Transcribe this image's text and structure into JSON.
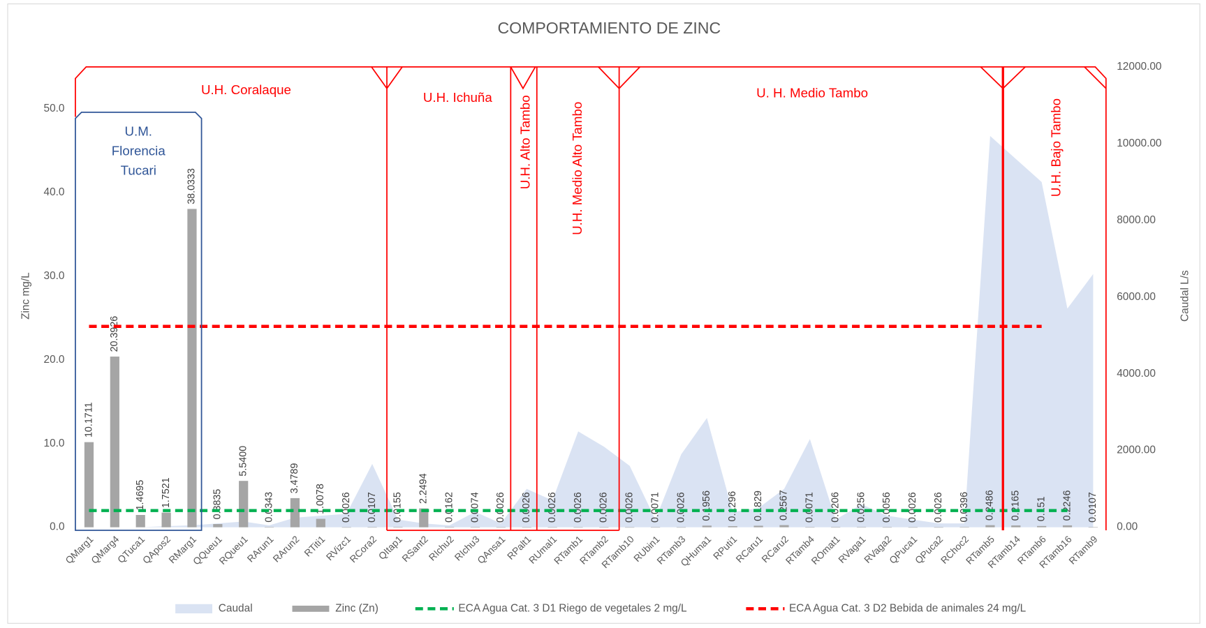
{
  "chart_data": {
    "type": "combo",
    "title": "COMPORTAMIENTO DE ZINC",
    "ylabel": "Zinc mg/L",
    "y2label": "Caudal L/s",
    "categories": [
      "QMarg1",
      "QMarg4",
      "QTuca1",
      "QApos2",
      "RMarg1",
      "QQueu1",
      "RQueu1",
      "RArun1",
      "RArun2",
      "RTiti1",
      "RVizc1",
      "RCora2",
      "QItap1",
      "RSant2",
      "RIchu2",
      "RIchu3",
      "QAnsa1",
      "RPalt1",
      "RUmal1",
      "RTamb1",
      "RTamb2",
      "RTamb10",
      "RUbin1",
      "RTamb3",
      "QHuma1",
      "RPuti1",
      "RCaru1",
      "RCaru2",
      "RTamb4",
      "ROmat1",
      "RVaga1",
      "RVaga2",
      "QPuca1",
      "QPuca2",
      "RChoc2",
      "RTamb5",
      "RTamb14",
      "RTamb6",
      "RTamb16",
      "RTamb9"
    ],
    "series": [
      {
        "name": "Caudal",
        "type": "area",
        "axis": "y2",
        "color": "#dae3f3",
        "values": [
          0,
          0,
          0,
          30,
          50,
          100,
          150,
          50,
          250,
          300,
          350,
          1650,
          200,
          100,
          50,
          400,
          100,
          1000,
          700,
          2500,
          2100,
          1600,
          200,
          1900,
          2850,
          400,
          500,
          1000,
          2300,
          200,
          600,
          300,
          200,
          100,
          100,
          10200,
          9600,
          9000,
          5700,
          6600
        ]
      },
      {
        "name": "Zinc (Zn)",
        "type": "bar",
        "color": "#a5a5a5",
        "values": [
          10.1711,
          20.3926,
          1.4695,
          1.7521,
          38.0333,
          0.3835,
          5.54,
          0.0343,
          3.4789,
          1.0078,
          0.0026,
          0.0107,
          0.0155,
          2.2494,
          0.0162,
          0.0074,
          0.0026,
          0.0026,
          0.0026,
          0.0026,
          0.0026,
          0.0026,
          0.0071,
          0.0026,
          0.1956,
          0.1296,
          0.1829,
          0.2567,
          0.0071,
          0.0206,
          0.0256,
          0.0056,
          0.0026,
          0.0026,
          0.0396,
          0.2486,
          0.2165,
          0.151,
          0.2246,
          0.0107
        ],
        "value_labels": [
          "10.1711",
          "20.3926",
          "1.4695",
          "1.7521",
          "38.0333",
          "0.3835",
          "5.5400",
          "0.0343",
          "3.4789",
          "1.0078",
          "0.0026",
          "0.0107",
          "0.0155",
          "2.2494",
          "0.0162",
          "0.0074",
          "0.0026",
          "0.0026",
          "0.0026",
          "0.0026",
          "0.0026",
          "0.0026",
          "0.0071",
          "0.0026",
          "0.1956",
          "0.1296",
          "0.1829",
          "0.2567",
          "0.0071",
          "0.0206",
          "0.0256",
          "0.0056",
          "0.0026",
          "0.0026",
          "0.0396",
          "0.2486",
          "0.2165",
          "0.151",
          "0.2246",
          "0.0107"
        ]
      },
      {
        "name": "ECA Agua Cat. 3 D1 Riego de vegetales 2 mg/L",
        "type": "line",
        "dashed": true,
        "color": "#00b050",
        "values": [
          2,
          2,
          2,
          2,
          2,
          2,
          2,
          2,
          2,
          2,
          2,
          2,
          2,
          2,
          2,
          2,
          2,
          2,
          2,
          2,
          2,
          2,
          2,
          2,
          2,
          2,
          2,
          2,
          2,
          2,
          2,
          2,
          2,
          2,
          2,
          2,
          2,
          2,
          2,
          null
        ]
      },
      {
        "name": "ECA Agua Cat. 3 D2 Bebida de animales 24 mg/L",
        "type": "line",
        "dashed": true,
        "color": "#ff0000",
        "values": [
          24,
          24,
          24,
          24,
          24,
          24,
          24,
          24,
          24,
          24,
          24,
          24,
          24,
          24,
          24,
          24,
          24,
          24,
          24,
          24,
          24,
          24,
          24,
          24,
          24,
          24,
          24,
          24,
          24,
          24,
          24,
          24,
          24,
          24,
          24,
          24,
          24,
          24,
          null,
          null
        ]
      }
    ],
    "ylim": [
      0,
      55
    ],
    "yticks": [
      {
        "value": 0,
        "label": "0.0"
      },
      {
        "value": 10,
        "label": "10.0"
      },
      {
        "value": 20,
        "label": "20.0"
      },
      {
        "value": 30,
        "label": "30.0"
      },
      {
        "value": 40,
        "label": "40.0"
      },
      {
        "value": 50,
        "label": "50.0"
      }
    ],
    "y2lim": [
      0,
      12000
    ],
    "y2ticks": [
      {
        "value": 0,
        "label": "0.00"
      },
      {
        "value": 2000,
        "label": "2000.00"
      },
      {
        "value": 4000,
        "label": "4000.00"
      },
      {
        "value": 6000,
        "label": "6000.00"
      },
      {
        "value": 8000,
        "label": "8000.00"
      },
      {
        "value": 10000,
        "label": "10000.00"
      },
      {
        "value": 12000,
        "label": "12000.00"
      }
    ],
    "grid": false,
    "legend": "bottom",
    "annotations": [
      "U.H. Coralaque",
      [
        "U.M.",
        "Florencia",
        "Tucari"
      ],
      "U.H. Ichuña",
      "U.H. Alto Tambo",
      "U.H. Medio Alto Tambo",
      "U. H. Medio Tambo",
      "U.H. Bajo Tambo"
    ]
  }
}
